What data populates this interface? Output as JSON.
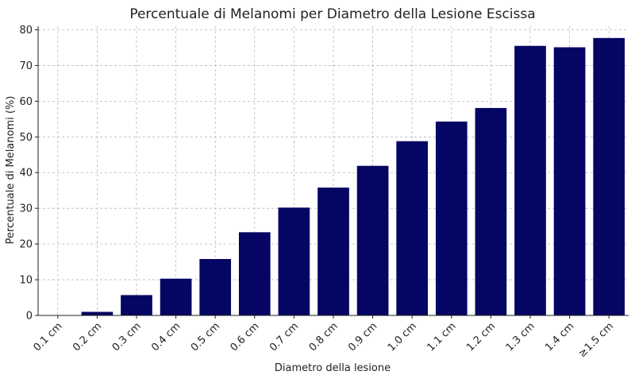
{
  "chart_data": {
    "type": "bar",
    "title": "Percentuale di Melanomi per Diametro della Lesione Escissa",
    "xlabel": "Diametro della lesione",
    "ylabel": "Percentuale di Melanomi (%)",
    "categories": [
      "0.1 cm",
      "0.2 cm",
      "0.3 cm",
      "0.4 cm",
      "0.5 cm",
      "0.6 cm",
      "0.7 cm",
      "0.8 cm",
      "0.9 cm",
      "1.0 cm",
      "1.1 cm",
      "1.2 cm",
      "1.3 cm",
      "1.4 cm",
      "≥1.5 cm"
    ],
    "values": [
      0,
      1,
      5.7,
      10.3,
      15.8,
      23.3,
      30.2,
      35.8,
      41.9,
      48.8,
      54.3,
      58.1,
      75.5,
      75.1,
      77.7
    ],
    "ylim": [
      0,
      81
    ],
    "yticks": [
      0,
      10,
      20,
      30,
      40,
      50,
      60,
      70,
      80
    ],
    "grid": true,
    "bar_color": "#050563"
  }
}
